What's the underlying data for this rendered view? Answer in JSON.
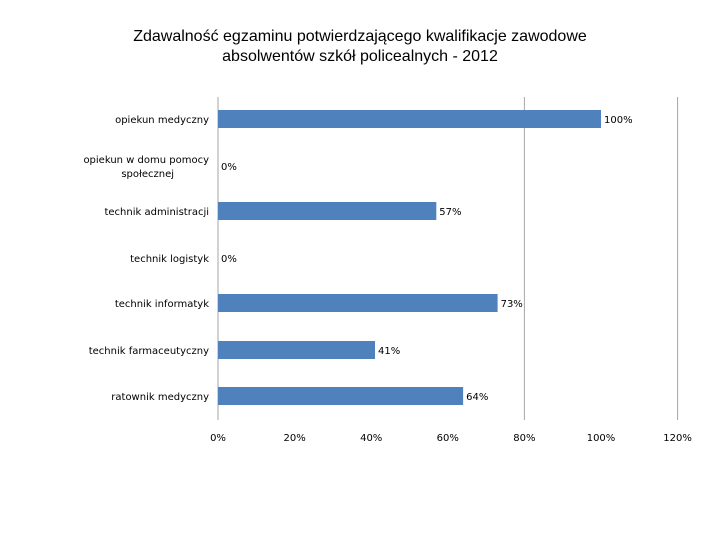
{
  "title_lines": [
    "Zdawalność egzaminu potwierdzającego kwalifikacje zawodowe",
    "absolwentów szkół policealnych - 2012"
  ],
  "chart_data": {
    "type": "bar",
    "orientation": "horizontal",
    "title": "Zdawalność egzaminu potwierdzającego kwalifikacje zawodowe absolwentów szkół policealnych - 2012",
    "categories": [
      "opiekun medyczny",
      "opiekun w domu pomocy społecznej",
      "technik administracji",
      "technik logistyk",
      "technik informatyk",
      "technik farmaceutyczny",
      "ratownik medyczny"
    ],
    "category_label_lines": [
      [
        "opiekun medyczny"
      ],
      [
        "opiekun w domu pomocy",
        "społecznej"
      ],
      [
        "technik administracji"
      ],
      [
        "technik logistyk"
      ],
      [
        "technik informatyk"
      ],
      [
        "technik farmaceutyczny"
      ],
      [
        "ratownik medyczny"
      ]
    ],
    "values": [
      100,
      0,
      57,
      0,
      73,
      41,
      64
    ],
    "value_labels": [
      "100%",
      "0%",
      "57%",
      "0%",
      "73%",
      "41%",
      "64%"
    ],
    "xlim": [
      0,
      120
    ],
    "x_ticks": [
      0,
      20,
      40,
      60,
      80,
      100,
      120
    ],
    "x_tick_labels": [
      "0%",
      "20%",
      "40%",
      "60%",
      "80%",
      "100%",
      "120%"
    ],
    "grid": "vertical lines at 80% and 120%",
    "bar_color": "#4f81bd",
    "legend": "none"
  }
}
